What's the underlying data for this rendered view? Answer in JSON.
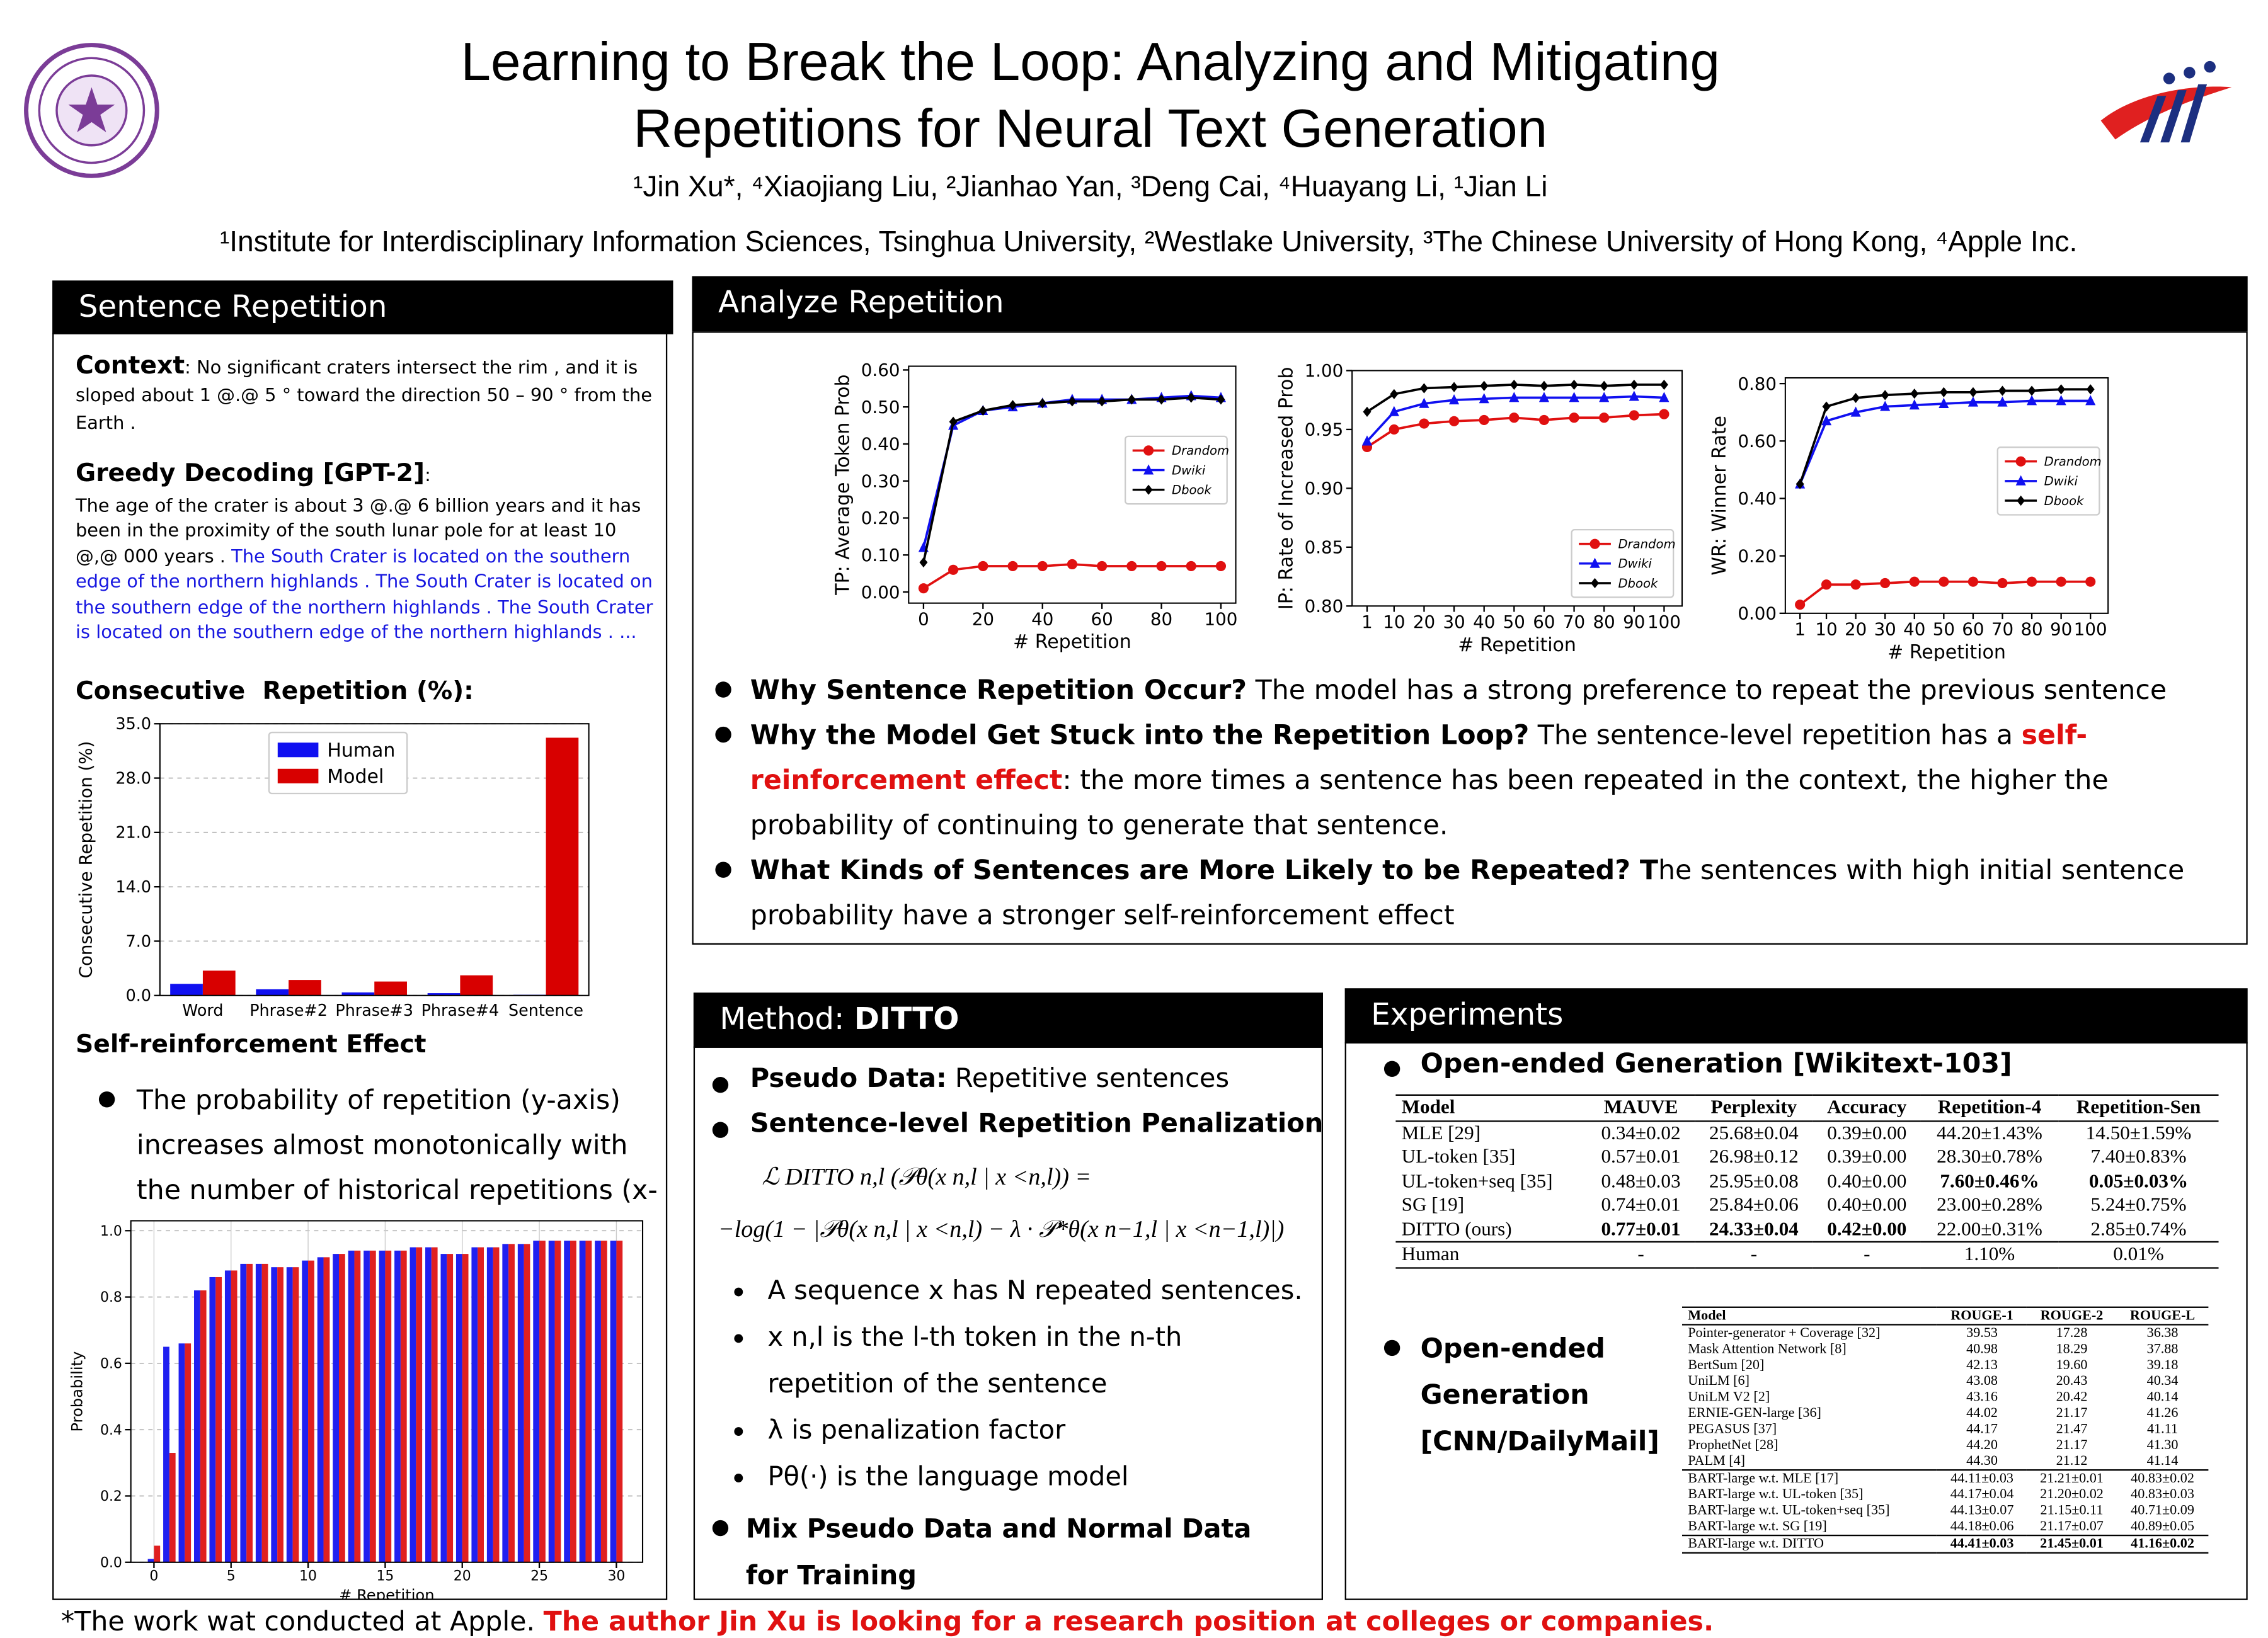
{
  "header": {
    "title": [
      "Learning to Break the Loop: Analyzing and Mitigating",
      "Repetitions for Neural Text Generation"
    ],
    "authors": "¹Jin Xu*, ⁴Xiaojiang Liu, ²Jianhao Yan, ³Deng Cai, ⁴Huayang Li, ¹Jian Li",
    "affiliations": "¹Institute for Interdisciplinary Information Sciences, Tsinghua University, ²Westlake University, ³The Chinese University of Hong Kong, ⁴Apple Inc."
  },
  "sentence_repetition": {
    "heading": "Sentence Repetition",
    "context_label": "Context",
    "context_text": ": No significant craters intersect the rim , and it is sloped about 1 @.@ 5 ° toward the direction 50 – 90 ° from the Earth .",
    "greedy_label": "Greedy Decoding [GPT-2]",
    "greedy_colon": ":",
    "greedy_text": "The age of the crater is about 3 @.@ 6 billion years and it has been in the proximity of the south lunar pole for at least 10 @,@ 000 years .",
    "greedy_repeat": " The South Crater is located on the southern edge of the northern highlands . The South Crater is located on the southern edge of the northern highlands . The South Crater is located on the southern edge of the northern highlands . ...",
    "consecutive_title": "Consecutive  Repetition (%):",
    "self_title": "Self-reinforcement Effect",
    "self_bullet": "The probability of repetition (y-axis) increases almost monotonically with the number of historical repetitions (x-axis)."
  },
  "analyze": {
    "heading": "Analyze Repetition",
    "bullets": [
      {
        "bold": "Why Sentence Repetition Occur?",
        "text": " The model has a strong preference to repeat the previous sentence"
      },
      {
        "bold": "Why the Model Get Stuck into the Repetition Loop?",
        "text": " The sentence-level repetition has a ",
        "red": "self-reinforcement effect",
        "tail": ": the more times a sentence has been repeated in the context, the higher the probability of continuing to generate that sentence."
      },
      {
        "bold": "What Kinds of Sentences are More Likely to be Repeated? T",
        "text": "he sentences with high initial sentence probability have a stronger self-reinforcement effect"
      }
    ]
  },
  "method": {
    "heading": "Method: ",
    "heading_bold": "DITTO",
    "pseudo_bold": "Pseudo Data:",
    "pseudo_text": " Repetitive sentences",
    "penalty": "Sentence-level Repetition Penalization",
    "equation": [
      "ℒ DITTO n,l (𝒫θ(x n,l | x <n,l)) =",
      "−log(1 − |𝒫θ(x n,l | x <n,l) − λ · 𝒫*θ(x n−1,l | x <n−1,l)|)"
    ],
    "notes": [
      "A sequence x has N repeated sentences.",
      "x n,l is the l-th token in the n-th repetition of the sentence",
      "λ is penalization factor",
      "Pθ(·) is the language model"
    ],
    "mix": "Mix Pseudo Data and Normal Data for Training"
  },
  "experiments": {
    "heading": "Experiments",
    "wikitext": "Open-ended Generation [Wikitext-103]",
    "cnn": "Open-ended Generation [CNN/DailyMail]",
    "table1": {
      "columns": [
        "Model",
        "MAUVE",
        "Perplexity",
        "Accuracy",
        "Repetition-4",
        "Repetition-Sen"
      ],
      "groups": [
        [
          [
            "MLE [29]",
            "0.34±0.02",
            "25.68±0.04",
            "0.39±0.00",
            "44.20±1.43%",
            "14.50±1.59%"
          ],
          [
            "UL-token [35]",
            "0.57±0.01",
            "26.98±0.12",
            "0.39±0.00",
            "28.30±0.78%",
            "7.40±0.83%"
          ],
          [
            "UL-token+seq [35]",
            "0.48±0.03",
            "25.95±0.08",
            "0.40±0.00",
            "7.60±0.46%",
            "0.05±0.03%"
          ],
          [
            "SG [19]",
            "0.74±0.01",
            "25.84±0.06",
            "0.40±0.00",
            "23.00±0.28%",
            "5.24±0.75%"
          ],
          [
            "DITTO (ours)",
            "0.77±0.01",
            "24.33±0.04",
            "0.42±0.00",
            "22.00±0.31%",
            "2.85±0.74%"
          ]
        ],
        [
          [
            "Human",
            "-",
            "-",
            "-",
            "1.10%",
            "0.01%"
          ]
        ]
      ]
    },
    "table2": {
      "columns": [
        "Model",
        "ROUGE-1",
        "ROUGE-2",
        "ROUGE-L"
      ],
      "groups": [
        [
          [
            "Pointer-generator + Coverage [32]",
            "39.53",
            "17.28",
            "36.38"
          ],
          [
            "Mask Attention Network [8]",
            "40.98",
            "18.29",
            "37.88"
          ],
          [
            "BertSum [20]",
            "42.13",
            "19.60",
            "39.18"
          ],
          [
            "UniLM [6]",
            "43.08",
            "20.43",
            "40.34"
          ],
          [
            "UniLM V2 [2]",
            "43.16",
            "20.42",
            "40.14"
          ],
          [
            "ERNIE-GEN-large [36]",
            "44.02",
            "21.17",
            "41.26"
          ],
          [
            "PEGASUS [37]",
            "44.17",
            "21.47",
            "41.11"
          ],
          [
            "ProphetNet [28]",
            "44.20",
            "21.17",
            "41.30"
          ],
          [
            "PALM [4]",
            "44.30",
            "21.12",
            "41.14"
          ]
        ],
        [
          [
            "BART-large w.t. MLE [17]",
            "44.11±0.03",
            "21.21±0.01",
            "40.83±0.02"
          ],
          [
            "BART-large w.t. UL-token [35]",
            "44.17±0.04",
            "21.20±0.02",
            "40.83±0.03"
          ],
          [
            "BART-large w.t. UL-token+seq [35]",
            "44.13±0.07",
            "21.15±0.11",
            "40.71±0.09"
          ],
          [
            "BART-large w.t. SG [19]",
            "44.18±0.06",
            "21.17±0.07",
            "40.89±0.05"
          ]
        ],
        [
          [
            "BART-large w.t. DITTO",
            "44.41±0.03",
            "21.45±0.01",
            "41.16±0.02"
          ]
        ]
      ]
    }
  },
  "footer": {
    "note": "*The work wat conducted at Apple. ",
    "highlight": "The author Jin Xu is looking for a research position at colleges or companies."
  },
  "chart_data": [
    {
      "type": "bar",
      "categories": [
        "Word",
        "Phrase#2",
        "Phrase#3",
        "Phrase#4",
        "Sentence"
      ],
      "series": [
        {
          "name": "Human",
          "color": "#1010f0",
          "values": [
            1.5,
            0.8,
            0.4,
            0.3,
            0.1
          ]
        },
        {
          "name": "Model",
          "color": "#d80000",
          "values": [
            3.2,
            2.0,
            1.8,
            2.6,
            33.2
          ]
        }
      ],
      "ylabel": "Consecutive Repetition (%)",
      "ylim": [
        0,
        35
      ],
      "yticks": [
        {
          "value": 0,
          "label": "0.0"
        },
        {
          "value": 7,
          "label": "7.0"
        },
        {
          "value": 14,
          "label": "14.0"
        },
        {
          "value": 21,
          "label": "21.0"
        },
        {
          "value": 28,
          "label": "28.0"
        },
        {
          "value": 35,
          "label": "35.0"
        }
      ],
      "grid": true,
      "legend": "upper center"
    },
    {
      "type": "line",
      "x": [
        0,
        10,
        20,
        30,
        40,
        50,
        60,
        70,
        80,
        90,
        100
      ],
      "series": [
        {
          "name": "Drandom",
          "color": "#e01010",
          "marker": "circle",
          "values": [
            0.01,
            0.06,
            0.07,
            0.07,
            0.07,
            0.075,
            0.07,
            0.07,
            0.07,
            0.07,
            0.07
          ]
        },
        {
          "name": "Dwiki",
          "color": "#1010f0",
          "marker": "triangle",
          "values": [
            0.12,
            0.45,
            0.49,
            0.5,
            0.51,
            0.52,
            0.52,
            0.52,
            0.525,
            0.53,
            0.525
          ]
        },
        {
          "name": "Dbook",
          "color": "#000000",
          "marker": "diamond",
          "values": [
            0.08,
            0.46,
            0.49,
            0.505,
            0.51,
            0.515,
            0.515,
            0.52,
            0.52,
            0.525,
            0.52
          ]
        }
      ],
      "xlabel": "# Repetition",
      "ylabel": "TP: Average Token Prob",
      "xlim": [
        -5,
        105
      ],
      "xticks": [
        0,
        20,
        40,
        60,
        80,
        100
      ],
      "ylim": [
        -0.03,
        0.61
      ],
      "yticks": [
        {
          "value": 0,
          "label": "0.00"
        },
        {
          "value": 0.1,
          "label": "0.10"
        },
        {
          "value": 0.2,
          "label": "0.20"
        },
        {
          "value": 0.3,
          "label": "0.30"
        },
        {
          "value": 0.4,
          "label": "0.40"
        },
        {
          "value": 0.5,
          "label": "0.50"
        },
        {
          "value": 0.6,
          "label": "0.60"
        }
      ],
      "grid": false,
      "legend": "center right"
    },
    {
      "type": "line",
      "x": [
        1,
        10,
        20,
        30,
        40,
        50,
        60,
        70,
        80,
        90,
        100
      ],
      "series": [
        {
          "name": "Drandom",
          "color": "#e01010",
          "marker": "circle",
          "values": [
            0.935,
            0.95,
            0.955,
            0.957,
            0.958,
            0.96,
            0.958,
            0.96,
            0.96,
            0.962,
            0.963
          ]
        },
        {
          "name": "Dwiki",
          "color": "#1010f0",
          "marker": "triangle",
          "values": [
            0.94,
            0.965,
            0.972,
            0.975,
            0.976,
            0.977,
            0.977,
            0.977,
            0.977,
            0.978,
            0.977
          ]
        },
        {
          "name": "Dbook",
          "color": "#000000",
          "marker": "diamond",
          "values": [
            0.965,
            0.98,
            0.985,
            0.986,
            0.987,
            0.988,
            0.987,
            0.988,
            0.987,
            0.988,
            0.988
          ]
        }
      ],
      "xlabel": "# Repetition",
      "ylabel": "IP: Rate of Increased Prob",
      "xlim": [
        -4,
        106
      ],
      "xticks": [
        1,
        10,
        20,
        30,
        40,
        50,
        60,
        70,
        80,
        90,
        100
      ],
      "ylim": [
        0.8,
        1.0
      ],
      "yticks": [
        {
          "value": 0.8,
          "label": "0.80"
        },
        {
          "value": 0.85,
          "label": "0.85"
        },
        {
          "value": 0.9,
          "label": "0.90"
        },
        {
          "value": 0.95,
          "label": "0.95"
        },
        {
          "value": 1.0,
          "label": "1.00"
        }
      ],
      "grid": false,
      "legend": "lower right"
    },
    {
      "type": "line",
      "x": [
        1,
        10,
        20,
        30,
        40,
        50,
        60,
        70,
        80,
        90,
        100
      ],
      "series": [
        {
          "name": "Drandom",
          "color": "#e01010",
          "marker": "circle",
          "values": [
            0.03,
            0.1,
            0.1,
            0.105,
            0.11,
            0.11,
            0.11,
            0.105,
            0.11,
            0.11,
            0.11
          ]
        },
        {
          "name": "Dwiki",
          "color": "#1010f0",
          "marker": "triangle",
          "values": [
            0.45,
            0.67,
            0.7,
            0.72,
            0.725,
            0.73,
            0.735,
            0.735,
            0.74,
            0.74,
            0.74
          ]
        },
        {
          "name": "Dbook",
          "color": "#000000",
          "marker": "diamond",
          "values": [
            0.45,
            0.72,
            0.75,
            0.76,
            0.765,
            0.77,
            0.77,
            0.775,
            0.775,
            0.78,
            0.78
          ]
        }
      ],
      "xlabel": "# Repetition",
      "ylabel": "WR: Winner Rate",
      "xlim": [
        -4,
        106
      ],
      "xticks": [
        1,
        10,
        20,
        30,
        40,
        50,
        60,
        70,
        80,
        90,
        100
      ],
      "ylim": [
        0,
        0.82
      ],
      "yticks": [
        {
          "value": 0,
          "label": "0.00"
        },
        {
          "value": 0.2,
          "label": "0.20"
        },
        {
          "value": 0.4,
          "label": "0.40"
        },
        {
          "value": 0.6,
          "label": "0.60"
        },
        {
          "value": 0.8,
          "label": "0.80"
        }
      ],
      "grid": false,
      "legend": "center right"
    },
    {
      "type": "bar",
      "x": [
        0,
        1,
        2,
        3,
        4,
        5,
        6,
        7,
        8,
        9,
        10,
        11,
        12,
        13,
        14,
        15,
        16,
        17,
        18,
        19,
        20,
        21,
        22,
        23,
        24,
        25,
        26,
        27,
        28,
        29,
        30
      ],
      "series": [
        {
          "color": "#2020f0",
          "values": [
            0.01,
            0.65,
            0.66,
            0.82,
            0.86,
            0.88,
            0.9,
            0.9,
            0.89,
            0.89,
            0.91,
            0.92,
            0.93,
            0.94,
            0.94,
            0.94,
            0.94,
            0.95,
            0.95,
            0.93,
            0.93,
            0.95,
            0.95,
            0.96,
            0.96,
            0.97,
            0.97,
            0.97,
            0.97,
            0.97,
            0.97
          ]
        },
        {
          "color": "#e02020",
          "values": [
            0.05,
            0.33,
            0.66,
            0.82,
            0.86,
            0.88,
            0.9,
            0.9,
            0.89,
            0.89,
            0.91,
            0.92,
            0.93,
            0.94,
            0.94,
            0.94,
            0.94,
            0.95,
            0.95,
            0.93,
            0.93,
            0.95,
            0.95,
            0.96,
            0.96,
            0.97,
            0.97,
            0.97,
            0.97,
            0.97,
            0.97
          ]
        }
      ],
      "xlabel": "# Repetition",
      "ylabel": "Probability",
      "xlim": [
        -1.5,
        31.7
      ],
      "xticks": [
        0,
        5,
        10,
        15,
        20,
        25,
        30
      ],
      "ylim": [
        0,
        1.03
      ],
      "yticks": [
        {
          "value": 0,
          "label": "0.0"
        },
        {
          "value": 0.2,
          "label": "0.2"
        },
        {
          "value": 0.4,
          "label": "0.4"
        },
        {
          "value": 0.6,
          "label": "0.6"
        },
        {
          "value": 0.8,
          "label": "0.8"
        },
        {
          "value": 1.0,
          "label": "1.0"
        }
      ],
      "grid": true
    }
  ]
}
